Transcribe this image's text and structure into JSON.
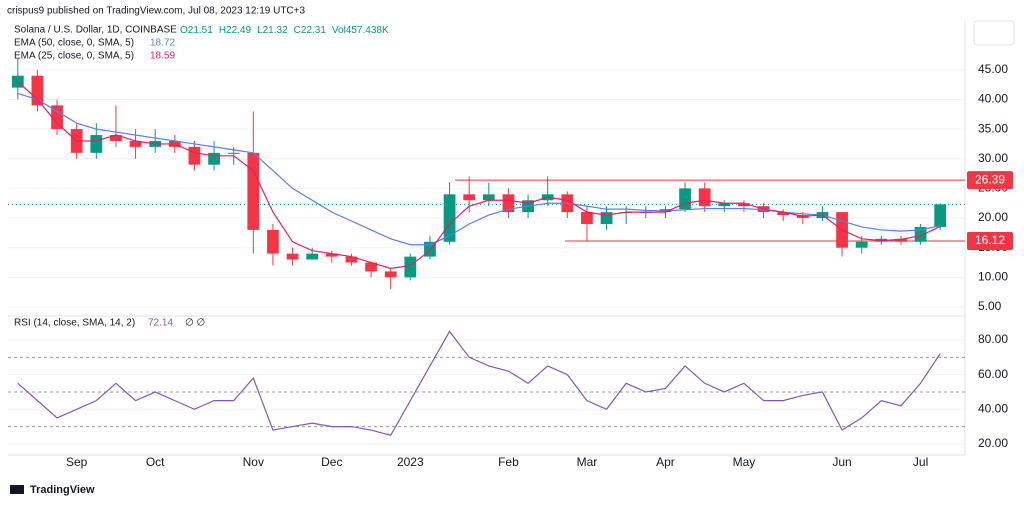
{
  "header": {
    "publisher": "crispus9 published on TradingView.com, Jul 08, 2023 12:19 UTC+3",
    "ohlc": [
      "O21.51",
      "H22.49",
      "L21.32",
      "C22.31",
      "Vol457.438K"
    ],
    "footer": "TradingView"
  },
  "chart_data": [
    {
      "type": "candlestick",
      "title": "Solana / U.S. Dollar, 1D, COINBASE",
      "categories": [
        null,
        null,
        null,
        "Sep",
        null,
        null,
        null,
        "Oct",
        null,
        null,
        null,
        null,
        "Nov",
        null,
        null,
        null,
        "Dec",
        null,
        null,
        null,
        "2023",
        null,
        null,
        null,
        null,
        "Feb",
        null,
        null,
        null,
        "Mar",
        null,
        null,
        null,
        "Apr",
        null,
        null,
        null,
        "May",
        null,
        null,
        null,
        null,
        "Jun",
        null,
        null,
        null,
        "Jul",
        null
      ],
      "open": [
        42,
        44,
        39,
        35,
        31,
        34,
        33,
        32,
        33,
        32,
        29,
        31,
        31,
        18,
        14,
        13,
        14,
        13.5,
        12.5,
        11,
        10,
        13.5,
        16,
        24,
        23,
        24,
        21,
        23,
        24,
        21,
        19,
        21,
        21,
        21,
        21.5,
        25,
        22,
        22.5,
        22,
        21,
        20.5,
        20,
        21,
        15,
        16,
        16.5,
        16,
        18.5
      ],
      "high": [
        47,
        45,
        40,
        36,
        36,
        39,
        35,
        35,
        34,
        33,
        33,
        32,
        38,
        19,
        15,
        15,
        14.5,
        14,
        12.7,
        11.5,
        14,
        17,
        26,
        27,
        26,
        25,
        24,
        27,
        24.5,
        22,
        22,
        22,
        22,
        22,
        26,
        26,
        23,
        23,
        22.5,
        21.5,
        21,
        22,
        21,
        17,
        17,
        17,
        19,
        22.49
      ],
      "low": [
        40,
        38,
        34,
        30,
        30,
        32,
        30,
        31,
        31,
        28,
        28,
        29,
        14,
        12,
        12,
        13,
        12.5,
        12,
        10,
        8,
        9.5,
        13,
        15.5,
        21,
        22,
        20,
        20,
        22,
        20,
        16,
        18,
        19,
        20,
        20,
        21,
        21,
        21,
        21,
        20,
        19.5,
        19,
        19.5,
        13.5,
        14,
        15.5,
        15.5,
        15.5,
        18
      ],
      "close": [
        44,
        39,
        35,
        31,
        34,
        33,
        32,
        33,
        32,
        29,
        31,
        31,
        18,
        14,
        13,
        14,
        13.5,
        12.5,
        11,
        10,
        13.5,
        16,
        24,
        23,
        24,
        21,
        23,
        24,
        21,
        19,
        21,
        21,
        21,
        21.5,
        25,
        22,
        22.5,
        22,
        21,
        20.5,
        20,
        21,
        15,
        16,
        16.5,
        16,
        18.5,
        22.31
      ],
      "up_color": "#089981",
      "down_color": "#f23645",
      "overlays": [
        {
          "name": "EMA (50, close, 0, SMA, 5)",
          "color": "#5b7cf0",
          "values": [
            41,
            40,
            38,
            36,
            35,
            34.5,
            34,
            33.5,
            33,
            32.5,
            32,
            31.5,
            31,
            28,
            25,
            23,
            21,
            19.5,
            18,
            16.5,
            15.5,
            15.5,
            17,
            19,
            20.5,
            21.5,
            22,
            22.5,
            22.5,
            22,
            21.5,
            21.5,
            21.3,
            21.2,
            21.4,
            21.6,
            21.6,
            21.6,
            21.4,
            21,
            20.7,
            20.5,
            19.5,
            18.5,
            18,
            17.8,
            18,
            18.72
          ]
        },
        {
          "name": "EMA (25, close, 0, SMA, 5)",
          "color": "#e91e63",
          "values": [
            43,
            40,
            36,
            33,
            33,
            34,
            33,
            32.5,
            32.5,
            31,
            30.5,
            30.5,
            28,
            21,
            16,
            14.5,
            14,
            13.5,
            12.5,
            11.5,
            12,
            14.5,
            19,
            22,
            23,
            23,
            22.5,
            23.5,
            23,
            21,
            20.5,
            21,
            21,
            21,
            22.5,
            23,
            22.5,
            22.5,
            21.5,
            21,
            20.3,
            20.5,
            18,
            16.5,
            16.2,
            16.4,
            17,
            18.59
          ]
        }
      ],
      "levels": [
        {
          "value": 26.39,
          "label": "26.39",
          "color": "#f23645"
        },
        {
          "value": 16.12,
          "label": "16.12",
          "color": "#f23645"
        }
      ],
      "ylim": [
        3.65,
        53.4
      ],
      "yticks": [
        {
          "value": 5,
          "label": "5.00"
        },
        {
          "value": 10,
          "label": "10.00"
        },
        {
          "value": 15,
          "label": "15.00"
        },
        {
          "value": 20,
          "label": "20.00"
        },
        {
          "value": 25,
          "label": "25.00"
        },
        {
          "value": 30,
          "label": "30.00"
        },
        {
          "value": 35,
          "label": "35.00"
        },
        {
          "value": 40,
          "label": "40.00"
        },
        {
          "value": 45,
          "label": "45.00"
        }
      ]
    },
    {
      "type": "line",
      "title": "RSI (14, close, SMA, 14, 2)",
      "extra": "∅ ∅",
      "color": "#7e57c2",
      "values": [
        55,
        45,
        35,
        40,
        45,
        55,
        45,
        50,
        45,
        40,
        45,
        45,
        58,
        28,
        30,
        32,
        30,
        30,
        28,
        25,
        45,
        65,
        85,
        70,
        65,
        62,
        55,
        65,
        60,
        45,
        40,
        55,
        50,
        52,
        65,
        55,
        50,
        55,
        45,
        45,
        48,
        50,
        28,
        35,
        45,
        42,
        55,
        72.14
      ],
      "bands": [
        70,
        50,
        30
      ],
      "ylim": [
        13.6,
        92.7
      ],
      "yticks": [
        {
          "value": 20,
          "label": "20.00"
        },
        {
          "value": 40,
          "label": "40.00"
        },
        {
          "value": 60,
          "label": "60.00"
        },
        {
          "value": 80,
          "label": "80.00"
        }
      ]
    }
  ]
}
